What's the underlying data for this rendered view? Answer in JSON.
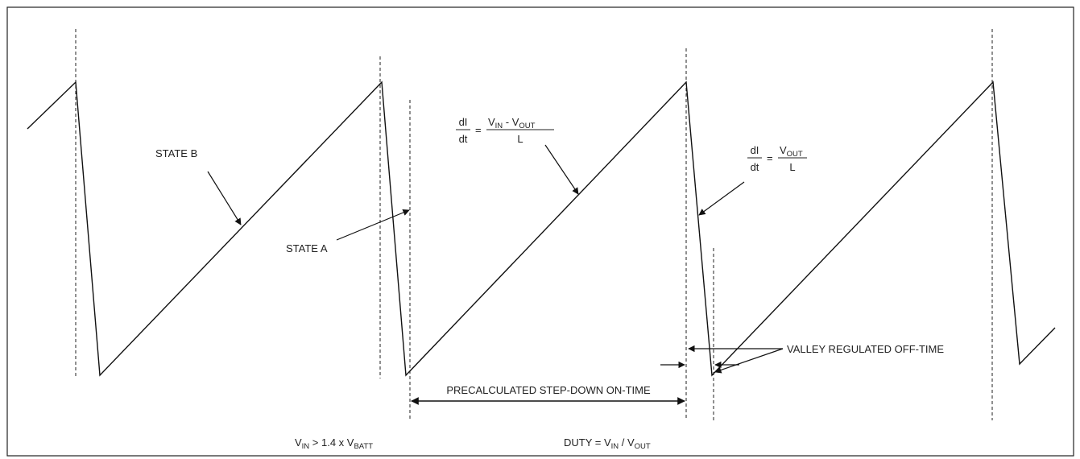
{
  "labels": {
    "state_b": "STATE B",
    "state_a": "STATE A",
    "on_time": "PRECALCULATED STEP-DOWN ON-TIME",
    "off_time": "VALLEY REGULATED OFF-TIME"
  },
  "eq_rise": {
    "num": "dI",
    "den": "dt",
    "equals": "=",
    "v": "V",
    "in_sub": "IN",
    "minus": " - ",
    "out_sub": "OUT",
    "den2": "L"
  },
  "eq_fall": {
    "num": "dI",
    "den": "dt",
    "equals": "=",
    "v": "V",
    "out_sub": "OUT",
    "den2": "L"
  },
  "cond1": {
    "v1": "V",
    "in_sub": "IN",
    "mid": " > 1.4 x ",
    "v2": "V",
    "batt_sub": "BATT"
  },
  "cond2": {
    "prefix": "DUTY = ",
    "v1": "V",
    "in_sub": "IN",
    "mid": " / ",
    "v2": "V",
    "out_sub": "OUT"
  }
}
